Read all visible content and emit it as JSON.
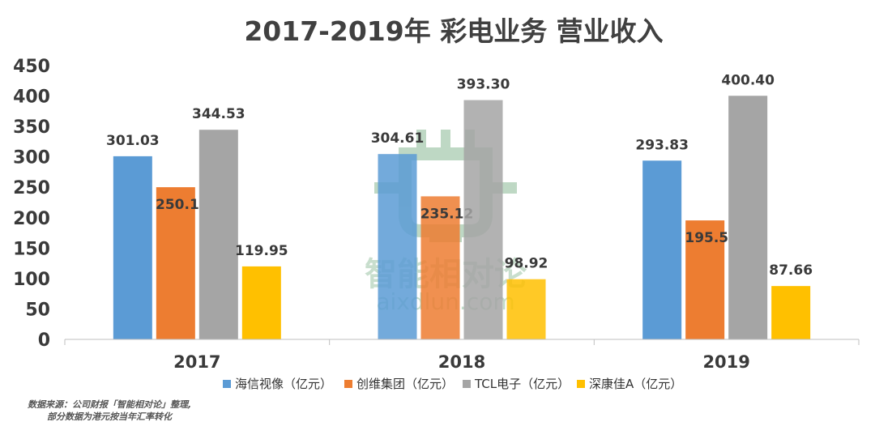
{
  "chart_data": {
    "type": "bar",
    "title": "2017-2019年 彩电业务 营业收入",
    "categories": [
      "2017",
      "2018",
      "2019"
    ],
    "series": [
      {
        "name": "海信视像（亿元）",
        "color": "#5b9bd5",
        "values": [
          301.03,
          304.61,
          293.83
        ],
        "labels": [
          "301.03",
          "304.61",
          "293.83"
        ]
      },
      {
        "name": "创维集团（亿元）",
        "color": "#ed7d31",
        "values": [
          250.13,
          235.12,
          195.55
        ],
        "labels": [
          "250.13",
          "235.12",
          "195.55"
        ]
      },
      {
        "name": "TCL电子（亿元）",
        "color": "#a5a5a5",
        "values": [
          344.53,
          393.3,
          400.4
        ],
        "labels": [
          "344.53",
          "393.30",
          "400.40"
        ]
      },
      {
        "name": "深康佳A（亿元）",
        "color": "#ffc000",
        "values": [
          119.95,
          98.92,
          87.66
        ],
        "labels": [
          "119.95",
          "98.92",
          "87.66"
        ]
      }
    ],
    "ylim": [
      0,
      450
    ],
    "yticks": [
      "0",
      "50",
      "100",
      "150",
      "200",
      "250",
      "300",
      "350",
      "400",
      "450"
    ],
    "grid": false,
    "legend": "bottom"
  },
  "watermark": {
    "text": "智能相对论",
    "url": "aixdlun.com"
  },
  "source_note": {
    "line1": "数据来源：公司财报「智能相对论」整理,",
    "line2": "部分数据为港元按当年汇率转化"
  }
}
